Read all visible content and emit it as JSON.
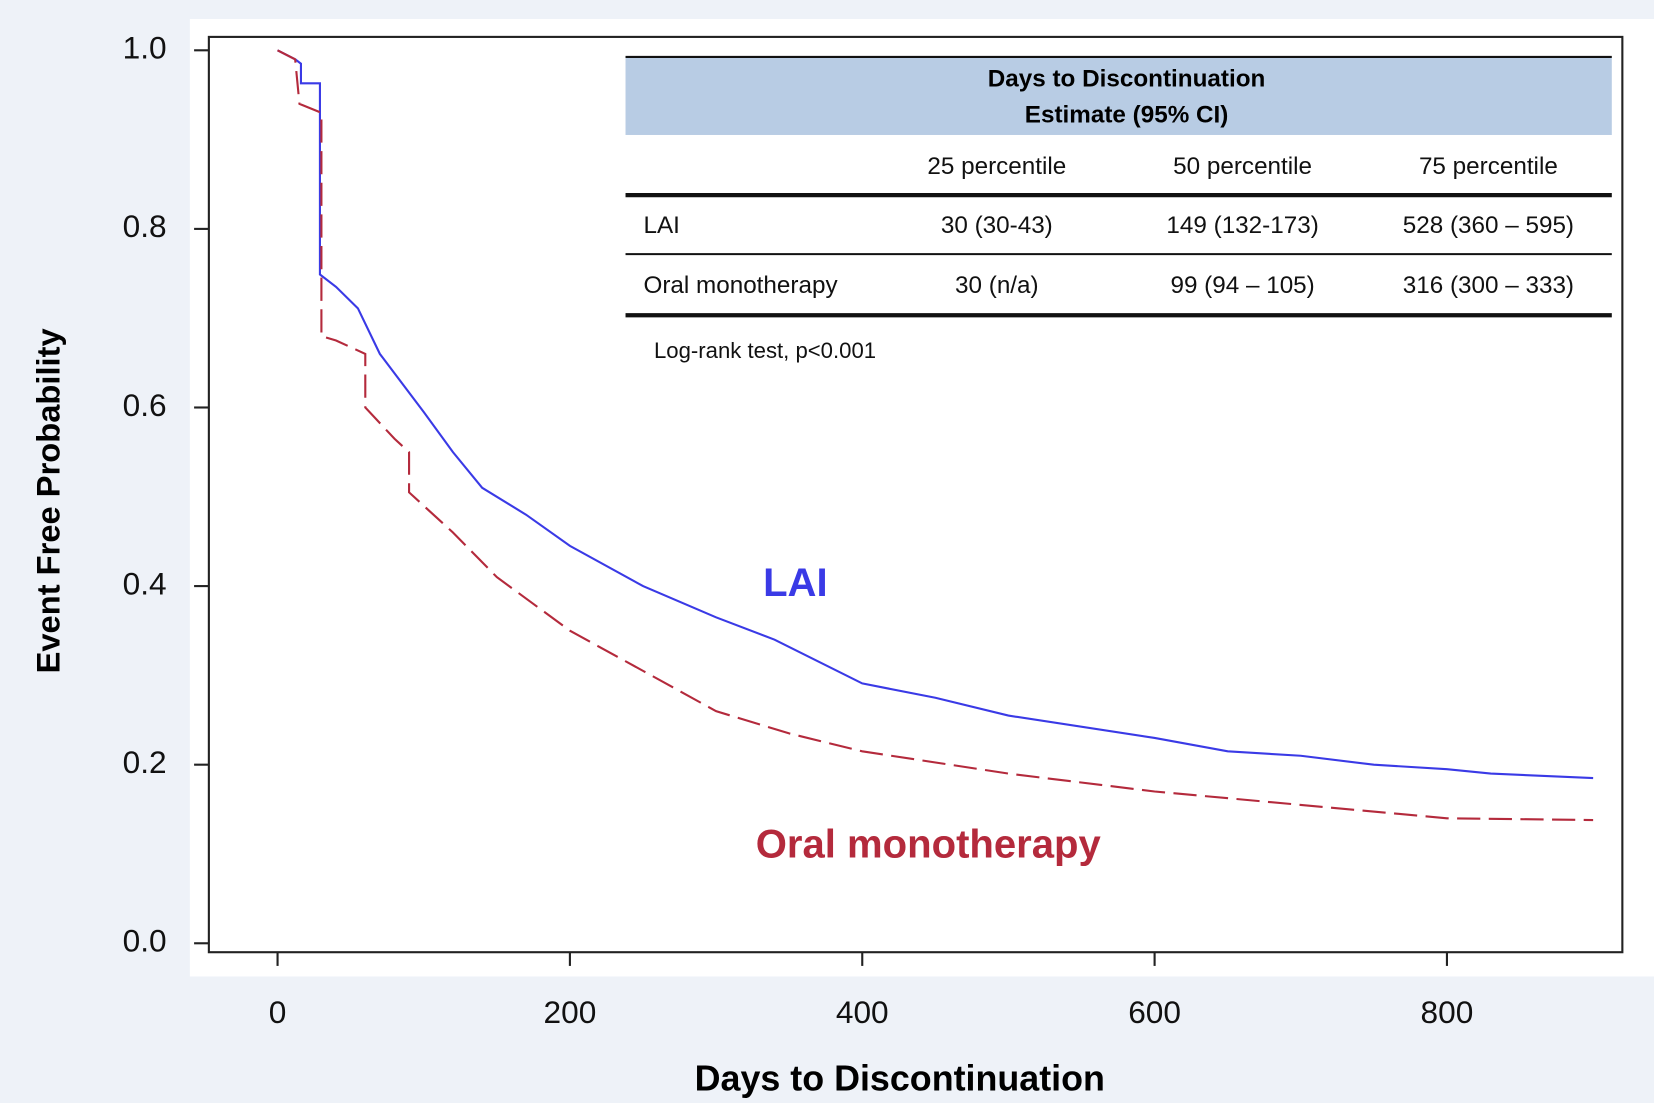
{
  "chart_data": {
    "type": "step-line",
    "x_label": "Days to Discontinuation",
    "y_label": "Event Free Probability",
    "xlim": [
      -47,
      920
    ],
    "ylim": [
      -0.01,
      1.015
    ],
    "xticks": [
      0,
      200,
      400,
      600,
      800
    ],
    "yticks": [
      {
        "value": 0,
        "label": "0.0"
      },
      0.2,
      0.4,
      0.6,
      0.8,
      {
        "value": 1,
        "label": "1.0"
      }
    ],
    "series": [
      {
        "name": "LAI",
        "color": "#3a3ae6",
        "dash": false,
        "x": [
          0,
          12,
          16,
          16,
          29,
          29,
          40,
          55,
          70,
          100,
          120,
          140,
          170,
          200,
          250,
          300,
          340,
          400,
          450,
          500,
          600,
          650,
          700,
          750,
          800,
          830,
          900
        ],
        "values": [
          1.0,
          0.99,
          0.985,
          0.963,
          0.963,
          0.749,
          0.735,
          0.711,
          0.66,
          0.595,
          0.55,
          0.51,
          0.48,
          0.445,
          0.4,
          0.365,
          0.34,
          0.291,
          0.275,
          0.255,
          0.23,
          0.215,
          0.21,
          0.2,
          0.195,
          0.19,
          0.185
        ]
      },
      {
        "name": "Oral monotherapy",
        "color": "#b42a3c",
        "dash": true,
        "x": [
          0,
          12,
          15,
          30,
          30,
          40,
          60,
          60,
          80,
          90,
          90,
          120,
          150,
          200,
          250,
          300,
          350,
          400,
          500,
          600,
          700,
          800,
          900
        ],
        "values": [
          1.0,
          0.99,
          0.94,
          0.93,
          0.68,
          0.675,
          0.66,
          0.6,
          0.565,
          0.55,
          0.505,
          0.46,
          0.41,
          0.35,
          0.305,
          0.26,
          0.235,
          0.215,
          0.19,
          0.17,
          0.155,
          0.14,
          0.138
        ]
      }
    ],
    "annotation": "Log-rank test, p<0.001",
    "table": {
      "title": [
        "Days to Discontinuation",
        "Estimate (95% CI)"
      ],
      "columns": [
        "25 percentile",
        "50 percentile",
        "75 percentile"
      ],
      "rows": [
        {
          "label": "LAI",
          "cells": [
            "30 (30-43)",
            "149 (132-173)",
            "528 (360 – 595)"
          ]
        },
        {
          "label": "Oral monotherapy",
          "cells": [
            "30 (n/a)",
            "99 (94 – 105)",
            "316 (300 – 333)"
          ]
        }
      ]
    }
  }
}
